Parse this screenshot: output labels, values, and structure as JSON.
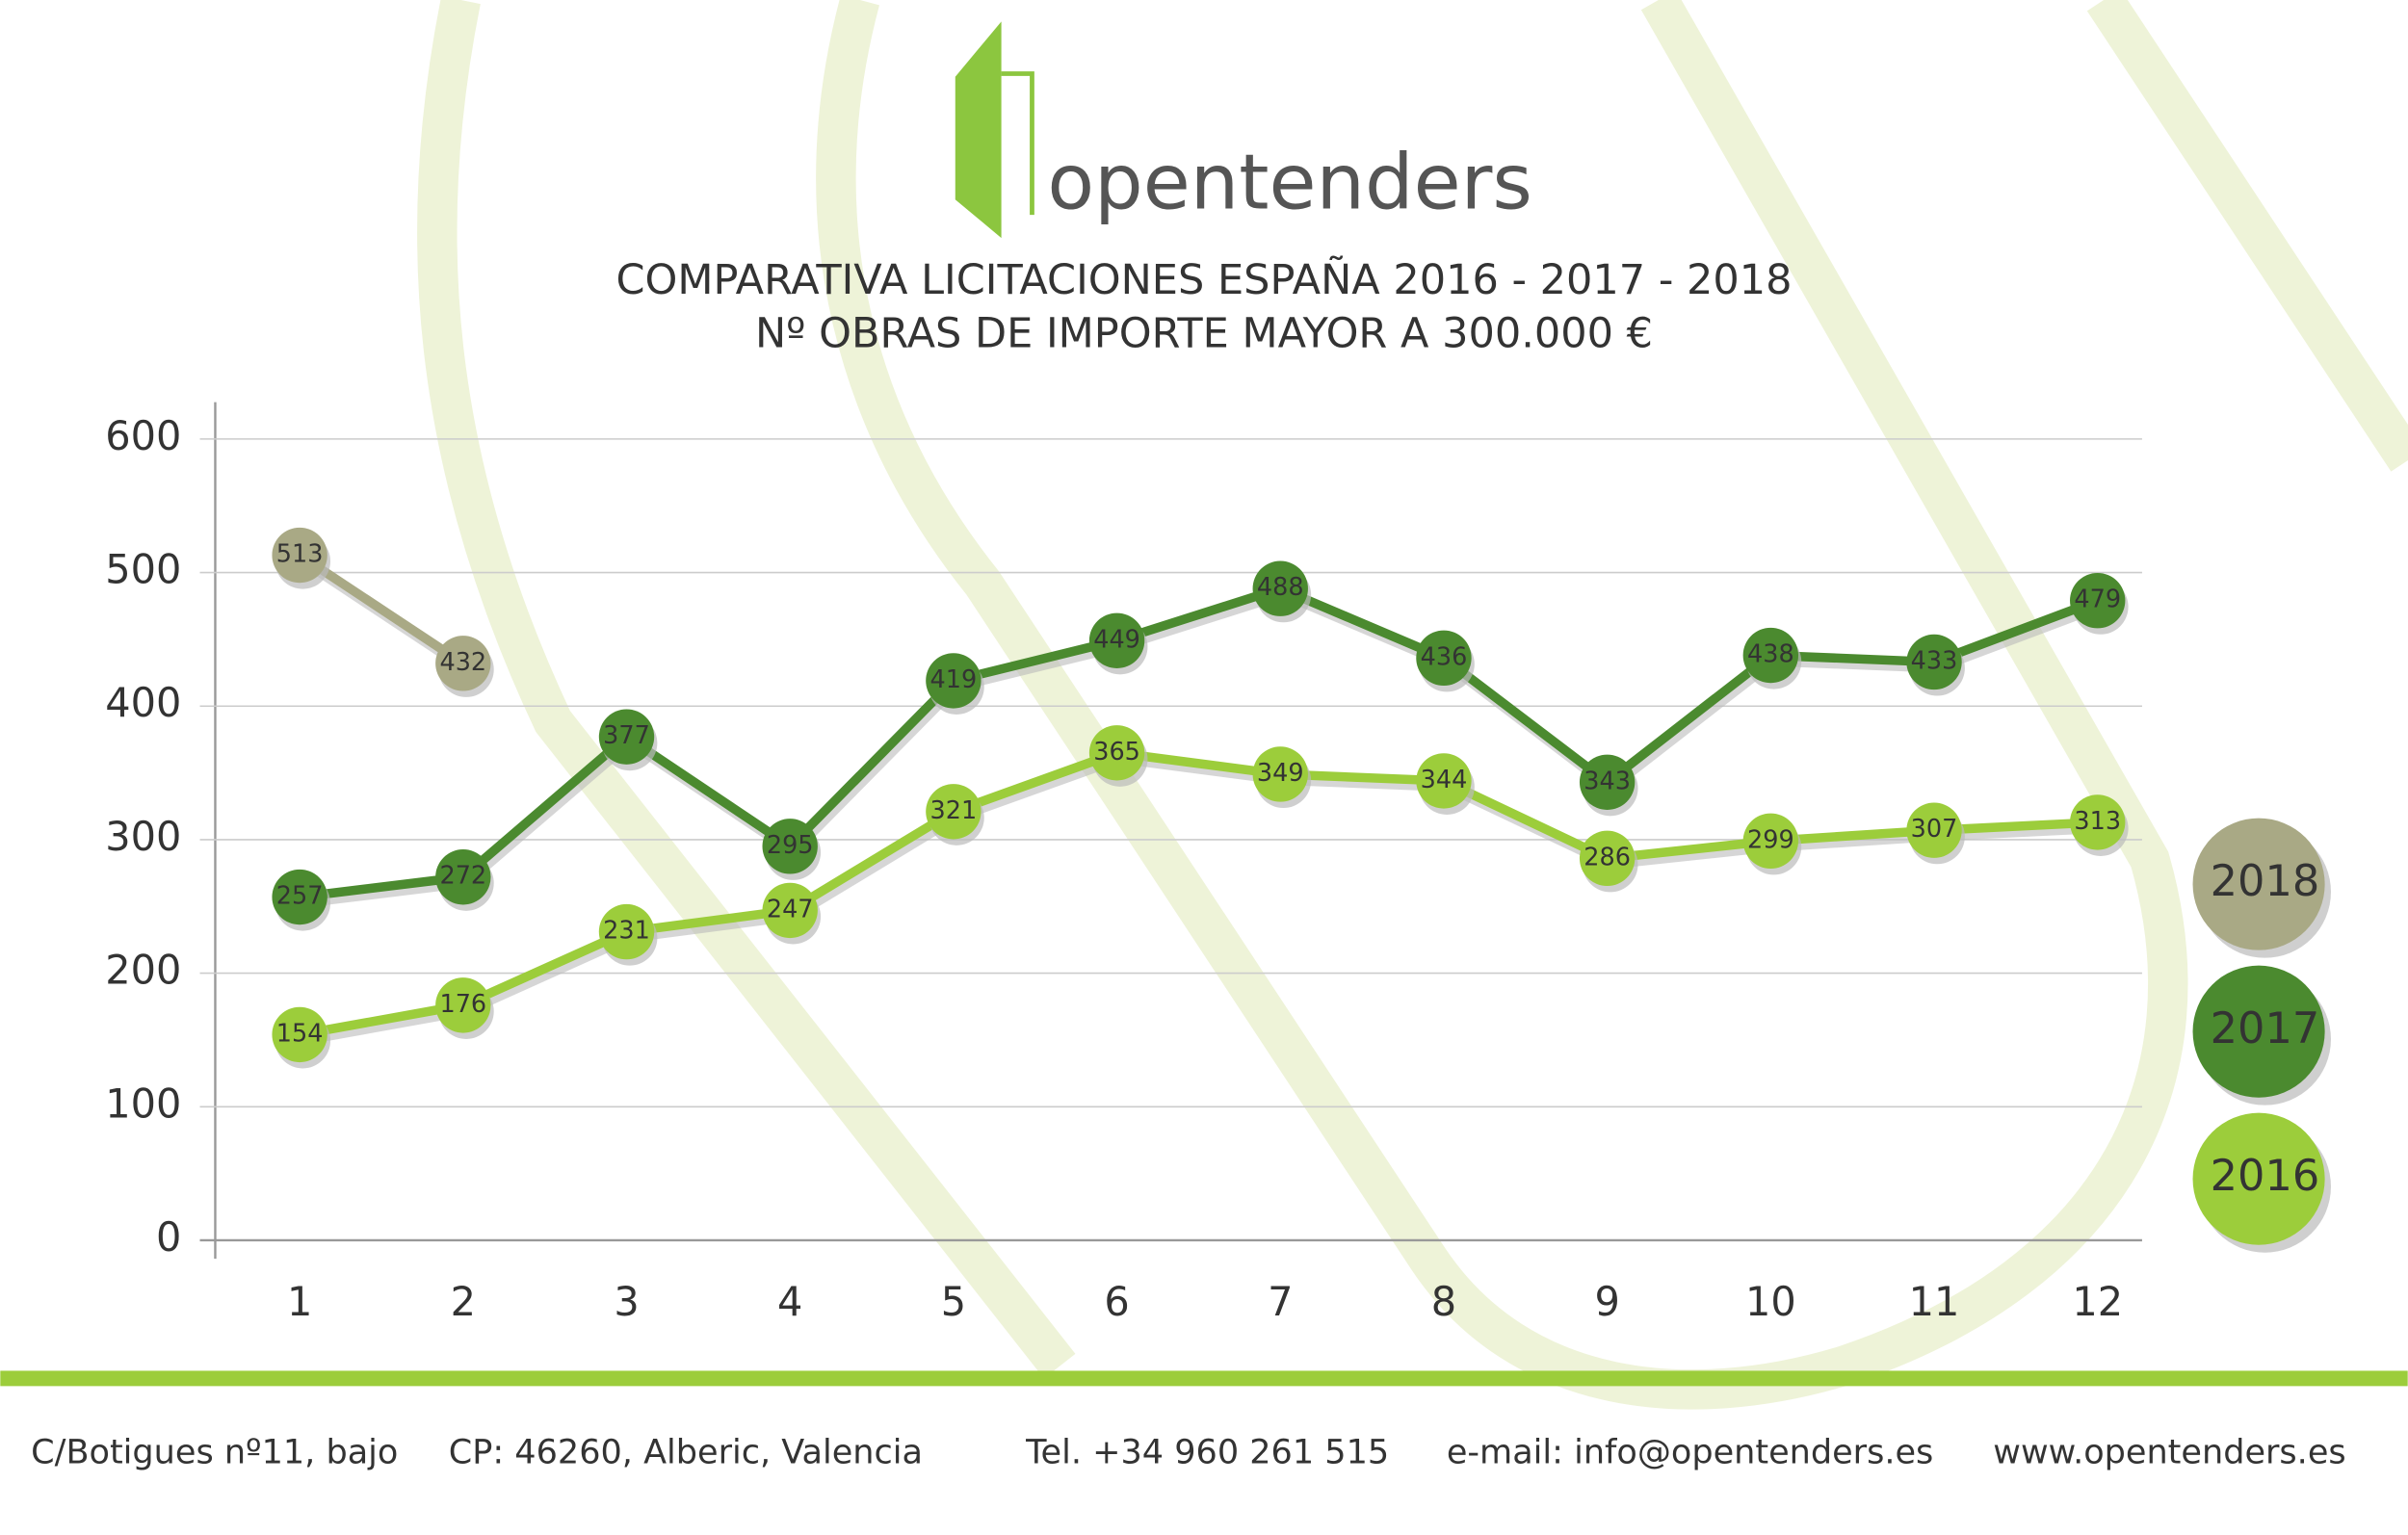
{
  "logo": "opentenders",
  "chart_data": {
    "type": "line",
    "title": "COMPARATIVA LICITACIONES ESPAÑA 2016 - 2017 - 2018",
    "subtitle": "Nº OBRAS DE IMPORTE MAYOR A 300.000 €",
    "categories": [
      "1",
      "2",
      "3",
      "4",
      "5",
      "6",
      "7",
      "8",
      "9",
      "10",
      "11",
      "12"
    ],
    "series": [
      {
        "name": "2018",
        "color": "#a9a985",
        "values": [
          513,
          432,
          null,
          null,
          null,
          null,
          null,
          null,
          null,
          null,
          null,
          null
        ]
      },
      {
        "name": "2017",
        "color": "#4b8a2f",
        "values": [
          257,
          272,
          377,
          295,
          419,
          449,
          488,
          436,
          343,
          438,
          433,
          479
        ]
      },
      {
        "name": "2016",
        "color": "#9ccd3b",
        "values": [
          154,
          176,
          231,
          247,
          321,
          365,
          349,
          344,
          286,
          299,
          307,
          313
        ]
      }
    ],
    "ylim": [
      0,
      600
    ],
    "yticks": [
      0,
      100,
      200,
      300,
      400,
      500,
      600
    ],
    "grid": true
  },
  "footer": [
    "C/Botigues nº11, bajo",
    "CP: 46260, Alberic, Valencia",
    "Tel. +34 960 261 515",
    "e-mail: info@opentenders.es",
    "www.opentenders.es"
  ]
}
